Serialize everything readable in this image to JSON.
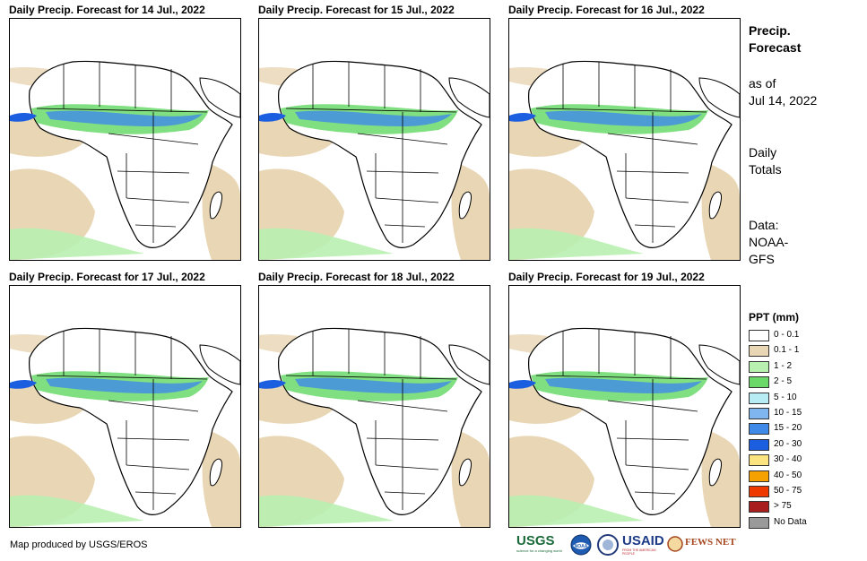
{
  "panels": [
    {
      "title": "Daily Precip. Forecast for 14 Jul., 2022"
    },
    {
      "title": "Daily Precip. Forecast for 15 Jul., 2022"
    },
    {
      "title": "Daily Precip. Forecast for 16 Jul., 2022"
    },
    {
      "title": "Daily Precip. Forecast for 17 Jul., 2022"
    },
    {
      "title": "Daily Precip. Forecast for 18 Jul., 2022"
    },
    {
      "title": "Daily Precip. Forecast for 19 Jul., 2022"
    }
  ],
  "sidebar": {
    "heading_line1": "Precip.",
    "heading_line2": "Forecast",
    "asof_line1": "as of",
    "asof_line2": "Jul 14, 2022",
    "totals_line1": "Daily",
    "totals_line2": "Totals",
    "data_line1": "Data:",
    "data_line2": "NOAA-",
    "data_line3": "GFS"
  },
  "legend": {
    "title": "PPT (mm)",
    "items": [
      {
        "label": "0 - 0.1",
        "color": "#ffffff"
      },
      {
        "label": "0.1 - 1",
        "color": "#e8d6b4"
      },
      {
        "label": "1 - 2",
        "color": "#b8f0b0"
      },
      {
        "label": "2 - 5",
        "color": "#6ad96a"
      },
      {
        "label": "5 - 10",
        "color": "#b8ecf4"
      },
      {
        "label": "10 - 15",
        "color": "#7fb6f0"
      },
      {
        "label": "15 - 20",
        "color": "#3f8ae8"
      },
      {
        "label": "20 - 30",
        "color": "#1c5ee0"
      },
      {
        "label": "30 - 40",
        "color": "#fbe480"
      },
      {
        "label": "40 - 50",
        "color": "#f5a200"
      },
      {
        "label": "50 - 75",
        "color": "#ee3a00"
      },
      {
        "label": "> 75",
        "color": "#a81e1e"
      },
      {
        "label": "No Data",
        "color": "#9a9a9a"
      }
    ]
  },
  "credit": "Map produced by USGS/EROS",
  "logos": {
    "usgs": "USGS",
    "usgs_tag": "science for a changing world",
    "noaa": "NOAA",
    "usaid": "USAID",
    "usaid_tag": "FROM THE AMERICAN PEOPLE",
    "fews": "FEWS NET"
  }
}
